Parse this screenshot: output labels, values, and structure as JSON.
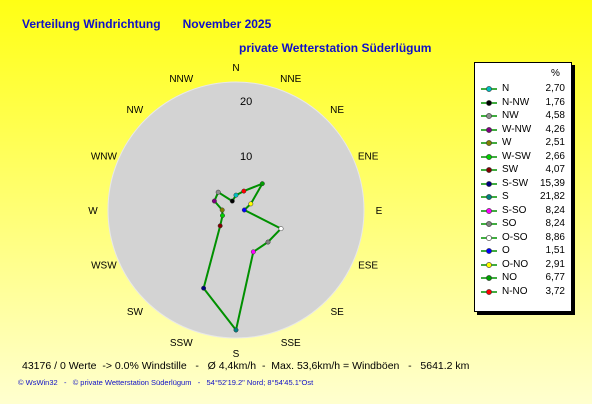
{
  "header": {
    "title": "Verteilung Windrichtung",
    "month": "November 2025",
    "station": "private Wetterstation Süderlügum"
  },
  "chart_data": {
    "type": "radar",
    "directions": [
      "N",
      "NNE",
      "NE",
      "ENE",
      "E",
      "ESE",
      "SE",
      "SSE",
      "S",
      "SSW",
      "SW",
      "WSW",
      "W",
      "WNW",
      "NW",
      "NNW"
    ],
    "values": [
      2.7,
      3.72,
      6.77,
      2.91,
      1.51,
      8.86,
      8.24,
      8.24,
      21.82,
      15.39,
      4.07,
      2.66,
      2.51,
      4.26,
      4.58,
      1.76
    ],
    "rmax": 20,
    "ticks": [
      10,
      20
    ],
    "series_color": "#009000",
    "background_color": "#d3d3d3",
    "legend": {
      "unit": "%",
      "items": [
        {
          "name": "N",
          "value": "2,70",
          "color": "#00c0c0"
        },
        {
          "name": "N-NW",
          "value": "1,76",
          "color": "#000000"
        },
        {
          "name": "NW",
          "value": "4,58",
          "color": "#909090"
        },
        {
          "name": "W-NW",
          "value": "4,26",
          "color": "#800080"
        },
        {
          "name": "W",
          "value": "2,51",
          "color": "#808000"
        },
        {
          "name": "W-SW",
          "value": "2,66",
          "color": "#00d000"
        },
        {
          "name": "SW",
          "value": "4,07",
          "color": "#800000"
        },
        {
          "name": "S-SW",
          "value": "15,39",
          "color": "#000080"
        },
        {
          "name": "S",
          "value": "21,82",
          "color": "#008080"
        },
        {
          "name": "S-SO",
          "value": "8,24",
          "color": "#ff00ff"
        },
        {
          "name": "SO",
          "value": "8,24",
          "color": "#808080"
        },
        {
          "name": "O-SO",
          "value": "8,86",
          "color": "#ffffff"
        },
        {
          "name": "O",
          "value": "1,51",
          "color": "#0000ff"
        },
        {
          "name": "O-NO",
          "value": "2,91",
          "color": "#ffff00"
        },
        {
          "name": "NO",
          "value": "6,77",
          "color": "#00a000"
        },
        {
          "name": "N-NO",
          "value": "3,72",
          "color": "#ff0000"
        }
      ]
    }
  },
  "footer": {
    "stats": "43176 / 0 Werte  -> 0.0% Windstille   -   Ø 4,4km/h  -  Max. 53,6km/h = Windböen   -   5641.2 km",
    "credit": "© WsWin32   -   © private Wetterstation Süderlügum   -   54°52'19.2\" Nord; 8°54'45.1\"Ost"
  }
}
